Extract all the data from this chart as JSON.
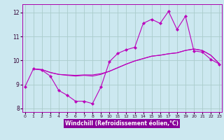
{
  "background_color": "#cce8f0",
  "grid_color": "#aacccc",
  "line_color": "#bb00bb",
  "xlabel": "Windchill (Refroidissement éolien,°C)",
  "xlabel_bg": "#8800aa",
  "ylim": [
    7.85,
    12.35
  ],
  "xlim": [
    -0.3,
    23.3
  ],
  "x_ticks": [
    0,
    1,
    2,
    3,
    4,
    5,
    6,
    7,
    8,
    9,
    10,
    11,
    12,
    13,
    14,
    15,
    16,
    17,
    18,
    19,
    20,
    21,
    22,
    23
  ],
  "y_ticks": [
    8,
    9,
    10,
    11,
    12
  ],
  "jagged_x": [
    0,
    1,
    2,
    3,
    4,
    5,
    6,
    7,
    8,
    9,
    10,
    11,
    12,
    13,
    14,
    15,
    16,
    17,
    18,
    19,
    20,
    21,
    22,
    23
  ],
  "jagged_y": [
    8.9,
    9.65,
    9.6,
    9.35,
    8.75,
    8.55,
    8.3,
    8.3,
    8.2,
    8.9,
    9.95,
    10.3,
    10.45,
    10.55,
    11.55,
    11.72,
    11.55,
    12.05,
    11.3,
    11.85,
    10.4,
    10.35,
    10.05,
    9.85
  ],
  "smooth1_x": [
    1,
    2,
    3,
    4,
    5,
    6,
    7,
    8,
    9,
    10,
    11,
    12,
    13,
    14,
    15,
    16,
    17,
    18,
    19,
    20,
    21,
    22,
    23
  ],
  "smooth1_y": [
    9.65,
    9.62,
    9.5,
    9.42,
    9.4,
    9.38,
    9.4,
    9.4,
    9.45,
    9.55,
    9.7,
    9.85,
    9.98,
    10.08,
    10.18,
    10.22,
    10.28,
    10.32,
    10.42,
    10.48,
    10.42,
    10.22,
    9.87
  ],
  "smooth2_x": [
    1,
    2,
    3,
    4,
    5,
    6,
    7,
    8,
    9,
    10,
    11,
    12,
    13,
    14,
    15,
    16,
    17,
    18,
    19,
    20,
    21,
    22,
    23
  ],
  "smooth2_y": [
    9.65,
    9.62,
    9.5,
    9.42,
    9.38,
    9.35,
    9.38,
    9.35,
    9.42,
    9.55,
    9.7,
    9.85,
    9.98,
    10.08,
    10.18,
    10.22,
    10.28,
    10.32,
    10.42,
    10.48,
    10.42,
    10.22,
    9.87
  ]
}
